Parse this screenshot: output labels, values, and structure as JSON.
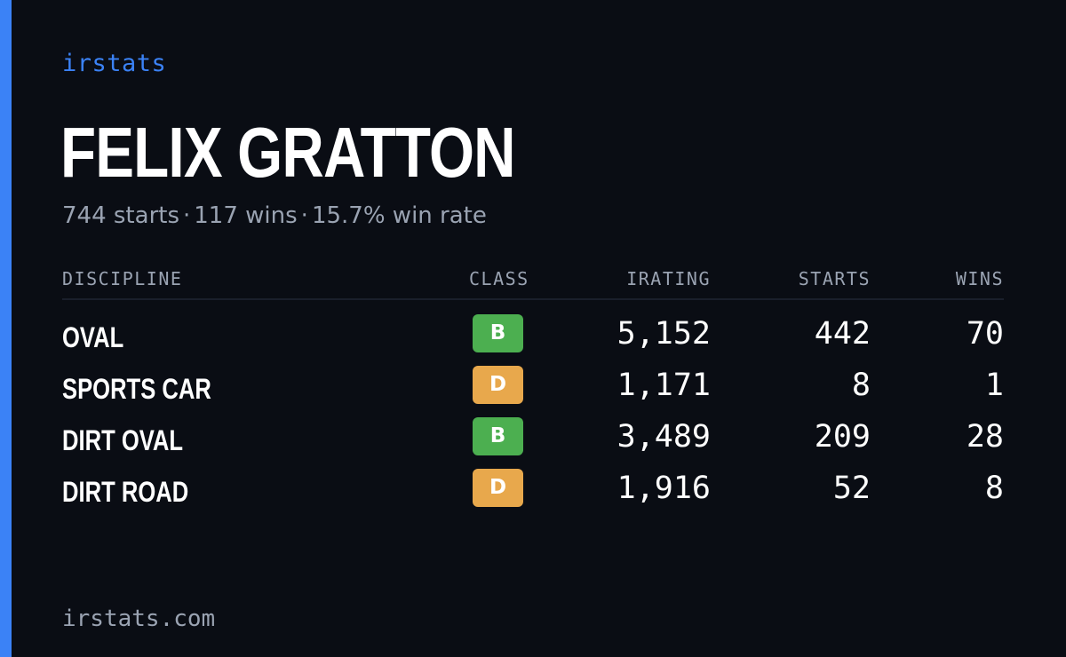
{
  "brand": "irstats",
  "player": {
    "name": "FELIX GRATTON",
    "starts_text": "744 starts",
    "wins_text": "117 wins",
    "winrate_text": "15.7% win rate",
    "separator": "·"
  },
  "table": {
    "headers": {
      "discipline": "DISCIPLINE",
      "class": "CLASS",
      "irating": "IRATING",
      "starts": "STARTS",
      "wins": "WINS"
    },
    "rows": [
      {
        "discipline": "OVAL",
        "class": "B",
        "class_color": "#4caf50",
        "irating": "5,152",
        "starts": "442",
        "wins": "70"
      },
      {
        "discipline": "SPORTS CAR",
        "class": "D",
        "class_color": "#e8a84c",
        "irating": "1,171",
        "starts": "8",
        "wins": "1"
      },
      {
        "discipline": "DIRT OVAL",
        "class": "B",
        "class_color": "#4caf50",
        "irating": "3,489",
        "starts": "209",
        "wins": "28"
      },
      {
        "discipline": "DIRT ROAD",
        "class": "D",
        "class_color": "#e8a84c",
        "irating": "1,916",
        "starts": "52",
        "wins": "8"
      }
    ]
  },
  "footer": "irstats.com",
  "colors": {
    "accent": "#3b82f6",
    "background": "#0a0d14",
    "muted": "#9aa3b2",
    "class_b": "#4caf50",
    "class_d": "#e8a84c"
  }
}
